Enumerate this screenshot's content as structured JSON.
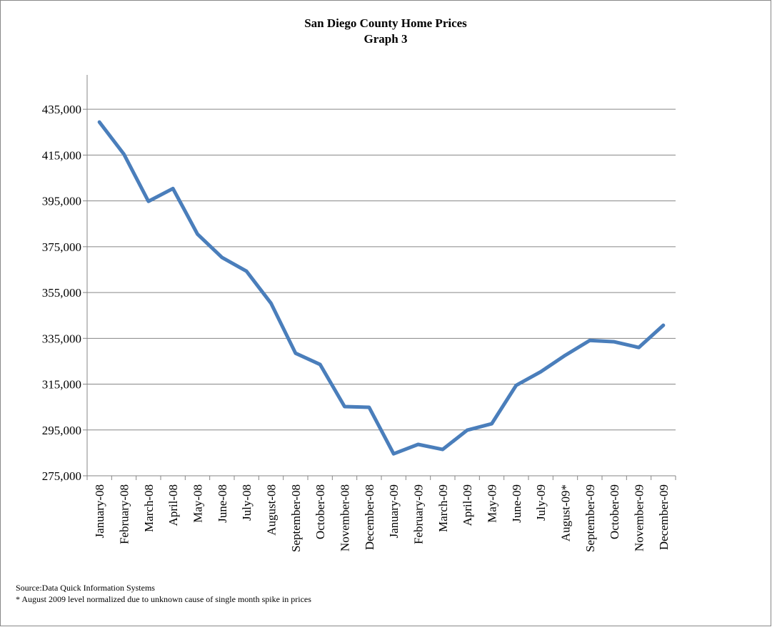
{
  "chart_data": {
    "type": "line",
    "title": "San Diego County Home Prices",
    "subtitle": "Graph 3",
    "categories": [
      "January-08",
      "February-08",
      "March-08",
      "April-08",
      "May-08",
      "June-08",
      "July-08",
      "August-08",
      "September-08",
      "October-08",
      "November-08",
      "December-08",
      "January-09",
      "February-09",
      "March-09",
      "April-09",
      "May-09",
      "June-09",
      "July-09",
      "August-09*",
      "September-09",
      "October-09",
      "November-09",
      "December-09"
    ],
    "series": [
      {
        "name": "Home Prices",
        "color": "#4a7ebb",
        "values": [
          429400,
          415400,
          394800,
          400400,
          380500,
          370300,
          364300,
          350300,
          328500,
          323600,
          305200,
          304900,
          284600,
          288700,
          286500,
          294900,
          297700,
          314500,
          320400,
          327600,
          334100,
          333500,
          331000,
          340700
        ]
      }
    ],
    "ylim": [
      275000,
      450000
    ],
    "yticks": [
      {
        "value": 275000,
        "label": "275,000"
      },
      {
        "value": 295000,
        "label": "295,000"
      },
      {
        "value": 315000,
        "label": "315,000"
      },
      {
        "value": 335000,
        "label": "335,000"
      },
      {
        "value": 355000,
        "label": "355,000"
      },
      {
        "value": 375000,
        "label": "375,000"
      },
      {
        "value": 395000,
        "label": "395,000"
      },
      {
        "value": 415000,
        "label": "415,000"
      },
      {
        "value": 435000,
        "label": "435,000"
      }
    ],
    "grid": true,
    "notes": [
      "Source:Data Quick Information Systems",
      "* August 2009 level normalized due to unknown cause of single month spike in prices"
    ]
  }
}
